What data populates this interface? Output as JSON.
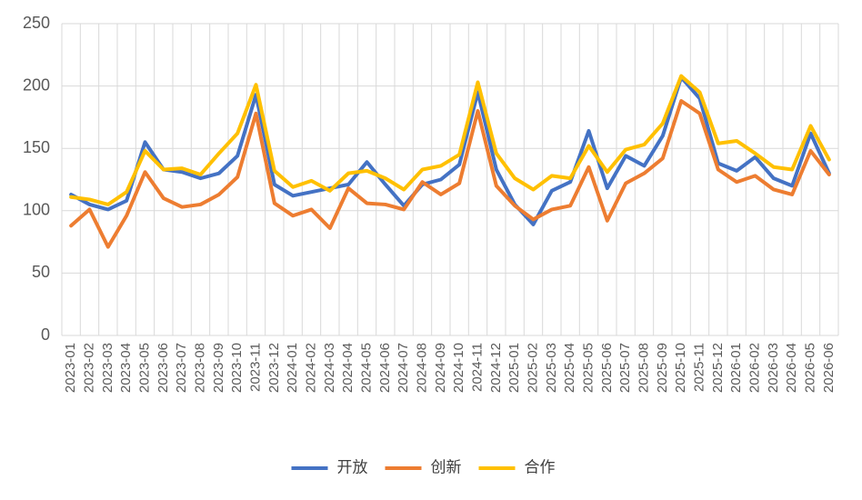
{
  "chart_data": {
    "type": "line",
    "categories": [
      "2023-01",
      "2023-02",
      "2023-03",
      "2023-04",
      "2023-05",
      "2023-06",
      "2023-07",
      "2023-08",
      "2023-09",
      "2023-10",
      "2023-11",
      "2023-12",
      "2024-01",
      "2024-02",
      "2024-03",
      "2024-04",
      "2024-05",
      "2024-06",
      "2024-07",
      "2024-08",
      "2024-09",
      "2024-10",
      "2024-11",
      "2024-12",
      "2025-01",
      "2025-02",
      "2025-03",
      "2025-04",
      "2025-05",
      "2025-06",
      "2025-07",
      "2025-08",
      "2025-09",
      "2025-10",
      "2025-11",
      "2025-12",
      "2026-01",
      "2026-02",
      "2026-03",
      "2026-04",
      "2026-05",
      "2026-06"
    ],
    "series": [
      {
        "name": "开放",
        "color": "#4472c4",
        "values": [
          113,
          105,
          101,
          108,
          155,
          133,
          131,
          126,
          130,
          144,
          193,
          121,
          112,
          115,
          118,
          121,
          139,
          121,
          104,
          121,
          125,
          137,
          195,
          133,
          105,
          89,
          116,
          123,
          164,
          118,
          144,
          136,
          160,
          207,
          190,
          138,
          132,
          143,
          126,
          120,
          162,
          130
        ]
      },
      {
        "name": "创新",
        "color": "#ed7d31",
        "values": [
          88,
          101,
          71,
          96,
          131,
          110,
          103,
          105,
          113,
          127,
          178,
          106,
          96,
          101,
          86,
          118,
          106,
          105,
          101,
          123,
          113,
          122,
          180,
          120,
          104,
          93,
          101,
          104,
          135,
          92,
          122,
          130,
          142,
          188,
          178,
          133,
          123,
          128,
          117,
          113,
          148,
          129
        ]
      },
      {
        "name": "合作",
        "color": "#ffc000",
        "values": [
          111,
          109,
          105,
          115,
          148,
          133,
          134,
          129,
          146,
          162,
          201,
          132,
          119,
          124,
          116,
          130,
          132,
          126,
          117,
          133,
          136,
          145,
          203,
          146,
          126,
          117,
          128,
          126,
          152,
          131,
          149,
          153,
          170,
          208,
          195,
          154,
          156,
          146,
          135,
          133,
          168,
          141
        ]
      }
    ],
    "ylim": [
      0,
      250
    ],
    "yticks": [
      0,
      50,
      100,
      150,
      200,
      250
    ],
    "grid": true,
    "legend": "bottom"
  }
}
